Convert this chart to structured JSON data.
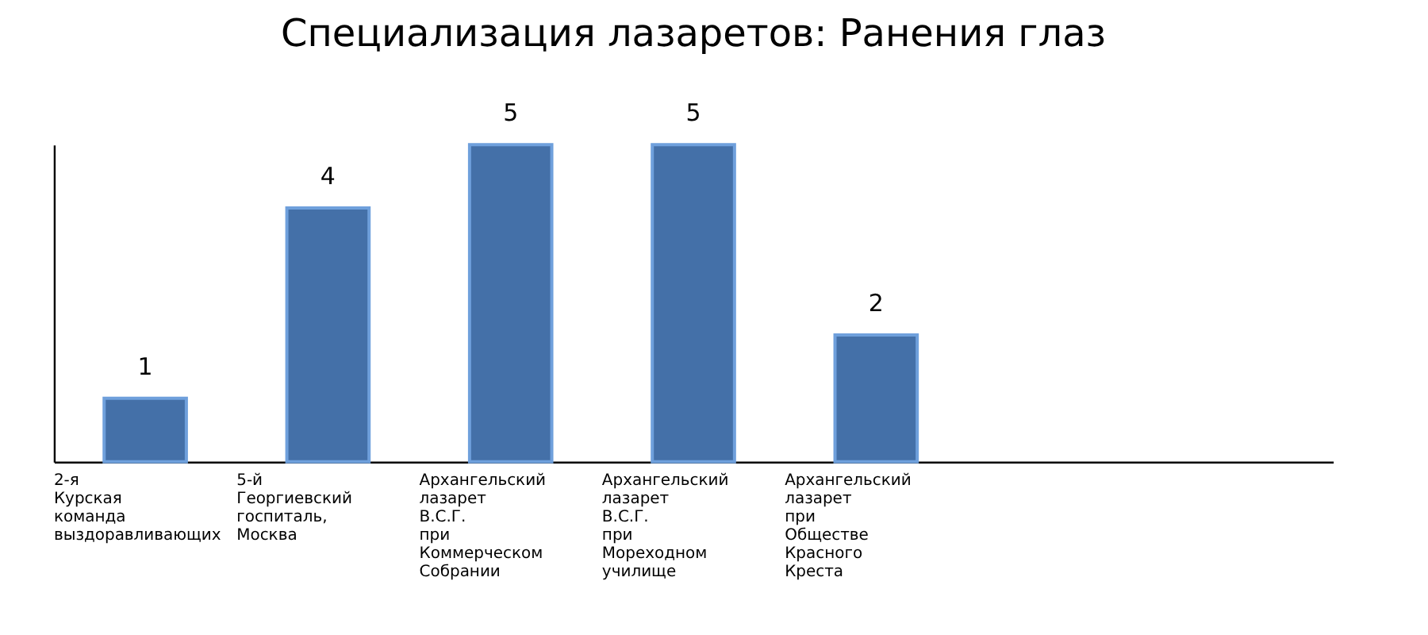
{
  "chart_data": {
    "type": "bar",
    "title": "Специализация лазаретов: Ранения глаз",
    "categories": [
      "2-я Курская команда выздоравливающих",
      "5-й Георгиевский госпиталь, Москва",
      "Архангельский лазарет В.С.Г. при Коммерческом Собрании",
      "Архангельский лазарет В.С.Г. при Мореходном училище",
      "Архангельский лазарет при Обществе Красного Креста",
      null,
      null
    ],
    "values": [
      1,
      4,
      5,
      5,
      2,
      null,
      null
    ],
    "color": "#4470a8",
    "ylim": [
      0,
      5
    ],
    "data_labels": true,
    "grid": false
  }
}
